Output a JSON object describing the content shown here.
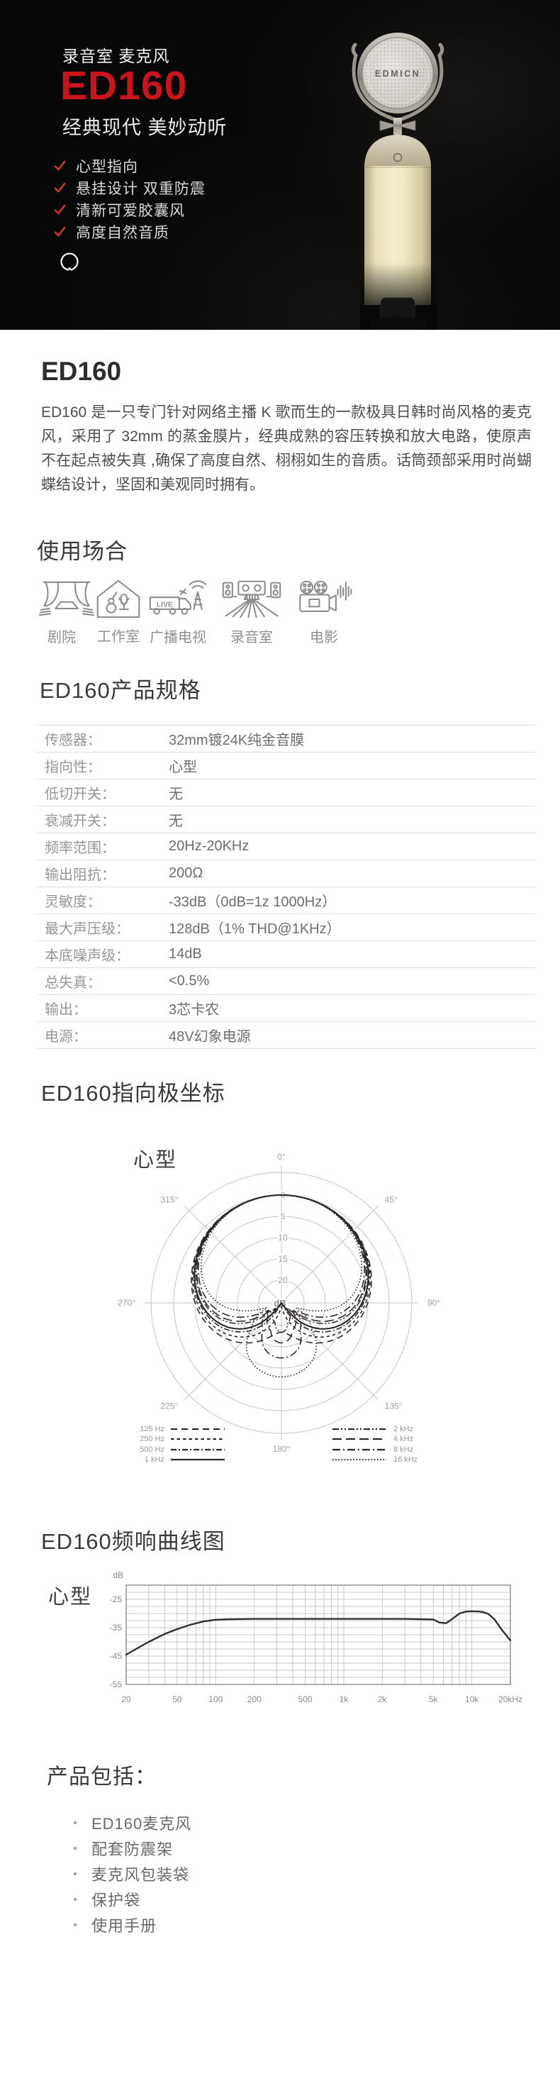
{
  "hero": {
    "subtitle": "录音室 麦克风",
    "title": "ED160",
    "tagline": "经典现代 美妙动听",
    "features": [
      "心型指向",
      "悬挂设计 双重防震",
      "清新可爱胶囊风",
      "高度自然音质"
    ],
    "mic_brand": "EDMICN",
    "colors": {
      "accent": "#c8141c",
      "check": "#cb3a17",
      "background": "#070707"
    }
  },
  "intro": {
    "title": "ED160",
    "paragraph": "ED160 是一只专门针对网络主播 K 歌而生的一款极具日韩时尚风格的麦克风，采用了 32mm 的蒸金膜片，经典成熟的容压转换和放大电路，使原声不在起点被失真 ,确保了高度自然、栩栩如生的音质。话筒颈部采用时尚蝴蝶结设计，坚固和美观同时拥有。"
  },
  "scenarios": {
    "title": "使用场合",
    "items": [
      {
        "label": "剧院",
        "icon": "theater-icon"
      },
      {
        "label": "工作室",
        "icon": "studio-icon"
      },
      {
        "label": "广播电视",
        "icon": "broadcast-icon",
        "badge": "LIVE"
      },
      {
        "label": "录音室",
        "icon": "recording-studio-icon"
      },
      {
        "label": "电影",
        "icon": "film-icon"
      }
    ]
  },
  "specs": {
    "title": "ED160产品规格",
    "rows": [
      {
        "label": "传感器：",
        "value": "32mm镀24K纯金音膜"
      },
      {
        "label": "指向性：",
        "value": "心型"
      },
      {
        "label": "低切开关：",
        "value": "无"
      },
      {
        "label": "衰减开关：",
        "value": "无"
      },
      {
        "label": "频率范围：",
        "value": "20Hz-20KHz"
      },
      {
        "label": "输出阻抗：",
        "value": "200Ω"
      },
      {
        "label": "灵敏度：",
        "value": "-33dB（0dB=1z 1000Hz）"
      },
      {
        "label": "最大声压级：",
        "value": "128dB（1% THD@1KHz）"
      },
      {
        "label": "本底噪声级：",
        "value": "14dB"
      },
      {
        "label": "总失真：",
        "value": "<0.5%"
      },
      {
        "label": "输出：",
        "value": "3芯卡农"
      },
      {
        "label": "电源：",
        "value": "48V幻象电源"
      }
    ]
  },
  "polar": {
    "title": "ED160指向极坐标",
    "pattern_label": "心型",
    "chart_data": {
      "type": "polar-line",
      "center_label": "dB",
      "ring_labels": [
        "0",
        "5",
        "10",
        "15",
        "20"
      ],
      "ring_db": [
        0,
        -5,
        -10,
        -15,
        -20
      ],
      "angle_labels": [
        "0°",
        "45°",
        "90°",
        "135°",
        "180°",
        "225°",
        "270°",
        "315°"
      ],
      "series": [
        {
          "name": "125 Hz",
          "dash": "9 6",
          "front": 0.56,
          "rear": 0
        },
        {
          "name": "250 Hz",
          "dash": "4.5 4",
          "front": 0.53,
          "rear": 0
        },
        {
          "name": "500 Hz",
          "dash": "8 3 2 3",
          "front": 0.5,
          "rear": 0
        },
        {
          "name": "1 kHz",
          "dash": "",
          "front": 0.48,
          "rear": 0
        },
        {
          "name": "2 kHz",
          "dash": "9 3 2 3 2 3",
          "front": 0.44,
          "rear": 0.1
        },
        {
          "name": "4 kHz",
          "dash": "13 6",
          "front": 0.42,
          "rear": 0.13
        },
        {
          "name": "8 kHz",
          "dash": "11 4 2 4",
          "front": 0.38,
          "rear": 0.16
        },
        {
          "name": "16 kHz",
          "dash": "1.6 2.6",
          "front": 0.3,
          "rear": 0.24
        }
      ]
    }
  },
  "freq": {
    "title": "ED160频响曲线图",
    "pattern_label": "心型",
    "chart_data": {
      "type": "line",
      "ylabel": "dB",
      "y_ticks": [
        "-25",
        "-35",
        "-45",
        "-55"
      ],
      "y_tick_values": [
        -25,
        -35,
        -45,
        -55
      ],
      "y_range": [
        -55,
        -20
      ],
      "x_ticks": [
        "20",
        "50",
        "100",
        "200",
        "500",
        "1k",
        "2k",
        "5k",
        "10k",
        "20kHz"
      ],
      "x_tick_values": [
        20,
        50,
        100,
        200,
        500,
        1000,
        2000,
        5000,
        10000,
        20000
      ],
      "x_range": [
        20,
        20000
      ],
      "grid": true,
      "points": [
        [
          20,
          -44.5
        ],
        [
          25,
          -42
        ],
        [
          30,
          -40
        ],
        [
          40,
          -37.2
        ],
        [
          50,
          -35.5
        ],
        [
          63,
          -34
        ],
        [
          80,
          -32.8
        ],
        [
          100,
          -32.2
        ],
        [
          130,
          -32
        ],
        [
          200,
          -31.9
        ],
        [
          300,
          -31.9
        ],
        [
          500,
          -31.9
        ],
        [
          800,
          -31.9
        ],
        [
          1000,
          -31.9
        ],
        [
          1500,
          -31.9
        ],
        [
          2000,
          -31.9
        ],
        [
          3000,
          -31.9
        ],
        [
          4000,
          -32
        ],
        [
          5000,
          -32.1
        ],
        [
          5600,
          -33.2
        ],
        [
          6300,
          -33.4
        ],
        [
          7000,
          -32
        ],
        [
          8000,
          -30
        ],
        [
          9000,
          -29.3
        ],
        [
          10000,
          -29.2
        ],
        [
          11500,
          -29.3
        ],
        [
          12500,
          -29.6
        ],
        [
          13500,
          -30.2
        ],
        [
          15000,
          -32
        ],
        [
          17000,
          -35.5
        ],
        [
          20000,
          -39.5
        ]
      ]
    }
  },
  "package": {
    "title": "产品包括：",
    "items": [
      "ED160麦克风",
      "配套防震架",
      "麦克风包装袋",
      "保护袋",
      "使用手册"
    ]
  }
}
